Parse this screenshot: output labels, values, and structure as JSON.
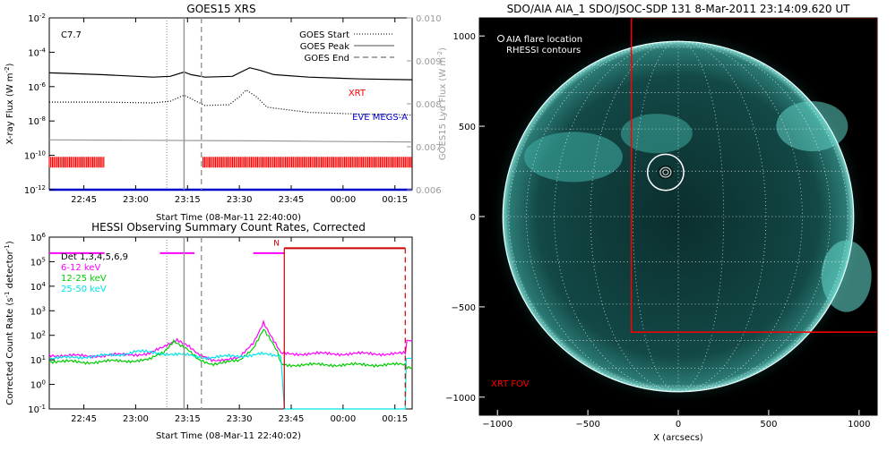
{
  "chart_data": [
    {
      "type": "line",
      "title": "GOES15 XRS",
      "annotation": "C7.7",
      "xlabel": "Start Time (08-Mar-11 22:40:00)",
      "ylabel": "X-ray Flux (W m",
      "ylabel_sup": "-2",
      "ylabel_tail": ")",
      "ylabel_right": "GOES15 Lyα Flux (W m",
      "ylabel_right_sup": "-2",
      "ylabel_right_tail": ")",
      "x_range_min": [
        -5,
        100
      ],
      "x_ticks": [
        {
          "v": 5,
          "label": "22:45"
        },
        {
          "v": 20,
          "label": "23:00"
        },
        {
          "v": 35,
          "label": "23:15"
        },
        {
          "v": 50,
          "label": "23:30"
        },
        {
          "v": 65,
          "label": "23:45"
        },
        {
          "v": 80,
          "label": "00:00"
        },
        {
          "v": 95,
          "label": "00:15"
        }
      ],
      "y_log_range": [
        -12,
        -2
      ],
      "y_ticks": [
        {
          "e": -2,
          "b": "10",
          "s": "-2"
        },
        {
          "e": -4,
          "b": "10",
          "s": "-4"
        },
        {
          "e": -6,
          "b": "10",
          "s": "-6"
        },
        {
          "e": -8,
          "b": "10",
          "s": "-8"
        },
        {
          "e": -10,
          "b": "10",
          "s": "-10"
        },
        {
          "e": -12,
          "b": "10",
          "s": "-12"
        }
      ],
      "y_right_range": [
        0.006,
        0.01
      ],
      "y_right_ticks": [
        "0.006",
        "0.007",
        "0.008",
        "0.009",
        "0.010"
      ],
      "legend": {
        "placement": "top-right",
        "entries": [
          {
            "label": "GOES Start",
            "style": "dotted"
          },
          {
            "label": "GOES Peak",
            "style": "solid"
          },
          {
            "label": "GOES End",
            "style": "dashed"
          }
        ]
      },
      "markers": {
        "start": 29,
        "peak": 34,
        "end": 39
      },
      "series": [
        {
          "name": "",
          "color": "#000000",
          "style": "solid",
          "points": [
            [
              -5,
              -5.2
            ],
            [
              10,
              -5.3
            ],
            [
              25,
              -5.45
            ],
            [
              30,
              -5.4
            ],
            [
              34,
              -5.15
            ],
            [
              36,
              -5.3
            ],
            [
              40,
              -5.45
            ],
            [
              48,
              -5.4
            ],
            [
              51,
              -5.1
            ],
            [
              53,
              -4.9
            ],
            [
              56,
              -5.05
            ],
            [
              60,
              -5.3
            ],
            [
              70,
              -5.45
            ],
            [
              85,
              -5.55
            ],
            [
              100,
              -5.6
            ]
          ]
        },
        {
          "name": "",
          "color": "#000000",
          "style": "dotted",
          "points": [
            [
              -5,
              -6.9
            ],
            [
              10,
              -6.9
            ],
            [
              25,
              -6.95
            ],
            [
              30,
              -6.85
            ],
            [
              34,
              -6.5
            ],
            [
              36,
              -6.7
            ],
            [
              40,
              -7.1
            ],
            [
              47,
              -7.05
            ],
            [
              50,
              -6.6
            ],
            [
              52,
              -6.2
            ],
            [
              55,
              -6.6
            ],
            [
              58,
              -7.2
            ],
            [
              70,
              -7.5
            ],
            [
              85,
              -7.6
            ],
            [
              100,
              -7.65
            ]
          ]
        },
        {
          "name": "",
          "color": "#9a9a9a",
          "style": "solid",
          "points": [
            [
              -5,
              -9.1
            ],
            [
              20,
              -9.12
            ],
            [
              40,
              -9.14
            ],
            [
              60,
              -9.16
            ],
            [
              80,
              -9.2
            ],
            [
              100,
              -9.22
            ]
          ]
        },
        {
          "name": "EVE MEGS-A",
          "color": "#0000cc",
          "style": "solid",
          "points": [
            [
              -5,
              -12.0
            ],
            [
              100,
              -12.0
            ]
          ]
        }
      ],
      "xrt_bars": {
        "name": "XRT",
        "color": "#ff0000",
        "y_log": -10.4,
        "ranges": [
          [
            -5,
            11
          ],
          [
            39.5,
            100
          ]
        ]
      }
    },
    {
      "type": "line",
      "title": "HESSI Observing Summary Count Rates, Corrected",
      "xlabel": "Start Time (08-Mar-11 22:40:02)",
      "ylabel": "Corrected Count Rate (s",
      "ylabel_sup": "-1",
      "ylabel_tail": " detector",
      "ylabel_sup2": "-1",
      "ylabel_tail2": ")",
      "x_range_min": [
        -5,
        100
      ],
      "x_ticks": [
        {
          "v": 5,
          "label": "22:45"
        },
        {
          "v": 20,
          "label": "23:00"
        },
        {
          "v": 35,
          "label": "23:15"
        },
        {
          "v": 50,
          "label": "23:30"
        },
        {
          "v": 65,
          "label": "23:45"
        },
        {
          "v": 80,
          "label": "00:00"
        },
        {
          "v": 95,
          "label": "00:15"
        }
      ],
      "y_log_range": [
        -1,
        6
      ],
      "y_ticks": [
        {
          "e": 6,
          "b": "10",
          "s": "6"
        },
        {
          "e": 5,
          "b": "10",
          "s": "5"
        },
        {
          "e": 4,
          "b": "10",
          "s": "4"
        },
        {
          "e": 3,
          "b": "10",
          "s": "3"
        },
        {
          "e": 2,
          "b": "10",
          "s": "2"
        },
        {
          "e": 1,
          "b": "10",
          "s": "1"
        },
        {
          "e": 0,
          "b": "10",
          "s": "0"
        },
        {
          "e": -1,
          "b": "10",
          "s": "-1"
        }
      ],
      "legend": {
        "placement": "top-left",
        "entries": [
          {
            "label": "Det 1,3,4,5,6,9",
            "color": "#000000"
          },
          {
            "label": "6-12 keV",
            "color": "#ff00ff"
          },
          {
            "label": "12-25 keV",
            "color": "#00cc00"
          },
          {
            "label": "25-50 keV",
            "color": "#00e5e5"
          }
        ]
      },
      "markers": {
        "start": 29,
        "peak": 34,
        "end": 39
      },
      "night_marker_label": "N",
      "night_start": 63,
      "night_end": 98,
      "attenuator_segments": [
        [
          -5,
          11
        ],
        [
          27,
          37
        ],
        [
          54,
          63
        ]
      ],
      "series": [
        {
          "name": "6-12 keV",
          "color": "#ff00ff",
          "points": [
            [
              -5,
              1.2
            ],
            [
              5,
              1.15
            ],
            [
              15,
              1.2
            ],
            [
              24,
              1.25
            ],
            [
              28,
              1.5
            ],
            [
              32,
              1.85
            ],
            [
              35,
              1.6
            ],
            [
              38,
              1.2
            ],
            [
              42,
              1.0
            ],
            [
              50,
              1.05
            ],
            [
              54,
              1.7
            ],
            [
              57,
              2.55
            ],
            [
              59,
              2.0
            ],
            [
              61,
              1.5
            ],
            [
              62,
              1.25
            ],
            [
              63,
              1.25
            ],
            [
              98,
              1.25
            ],
            [
              98.5,
              1.75
            ],
            [
              100,
              1.8
            ]
          ]
        },
        {
          "name": "12-25 keV",
          "color": "#00cc00",
          "points": [
            [
              -5,
              0.95
            ],
            [
              5,
              0.9
            ],
            [
              15,
              0.95
            ],
            [
              24,
              1.0
            ],
            [
              28,
              1.3
            ],
            [
              31,
              1.8
            ],
            [
              35,
              1.4
            ],
            [
              38,
              1.0
            ],
            [
              42,
              0.85
            ],
            [
              50,
              0.95
            ],
            [
              54,
              1.5
            ],
            [
              57,
              2.25
            ],
            [
              59,
              1.8
            ],
            [
              61,
              1.3
            ],
            [
              62,
              0.85
            ],
            [
              63,
              0.8
            ],
            [
              98,
              0.8
            ],
            [
              98.5,
              0.7
            ],
            [
              100,
              0.7
            ]
          ]
        },
        {
          "name": "25-50 keV",
          "color": "#00e5e5",
          "points": [
            [
              -5,
              1.05
            ],
            [
              15,
              1.2
            ],
            [
              20,
              1.35
            ],
            [
              24,
              1.3
            ],
            [
              30,
              1.25
            ],
            [
              34,
              1.2
            ],
            [
              40,
              1.1
            ],
            [
              50,
              1.15
            ],
            [
              56,
              1.25
            ],
            [
              60,
              1.15
            ],
            [
              62,
              1.2
            ],
            [
              63,
              -1
            ],
            [
              98,
              -1
            ],
            [
              98.3,
              1.05
            ],
            [
              100,
              1.05
            ]
          ]
        }
      ]
    },
    {
      "type": "scatter",
      "title": "SDO/AIA AIA_1 SDO/JSOC-SDP 131  8-Mar-2011 23:14:09.620 UT",
      "xlabel": "X (arcsecs)",
      "x_range": [
        -1100,
        1100
      ],
      "y_range": [
        -1100,
        1100
      ],
      "x_ticks": [
        {
          "v": -1000,
          "label": "−1000"
        },
        {
          "v": -500,
          "label": "−500"
        },
        {
          "v": 0,
          "label": "0"
        },
        {
          "v": 500,
          "label": "500"
        },
        {
          "v": 1000,
          "label": "1000"
        }
      ],
      "y_ticks": [
        {
          "v": 1000,
          "label": "1000"
        },
        {
          "v": 500,
          "label": "500"
        },
        {
          "v": 0,
          "label": "0"
        },
        {
          "v": -500,
          "label": "−500"
        },
        {
          "v": -1000,
          "label": "−1000"
        }
      ],
      "sun_radius": 970,
      "legend_lines": [
        "AIA flare location",
        "RHESSI contours"
      ],
      "flare_location": [
        -70,
        245
      ],
      "flare_circle_radius": 100,
      "xrt_fov": {
        "label": "XRT FOV",
        "color": "#ff0000",
        "x": [
          -260,
          1100
        ],
        "y": [
          -640,
          1100
        ]
      },
      "colors": {
        "background": "#000000",
        "disk": "#0e3a38",
        "limb": "#bfeee8"
      }
    }
  ]
}
